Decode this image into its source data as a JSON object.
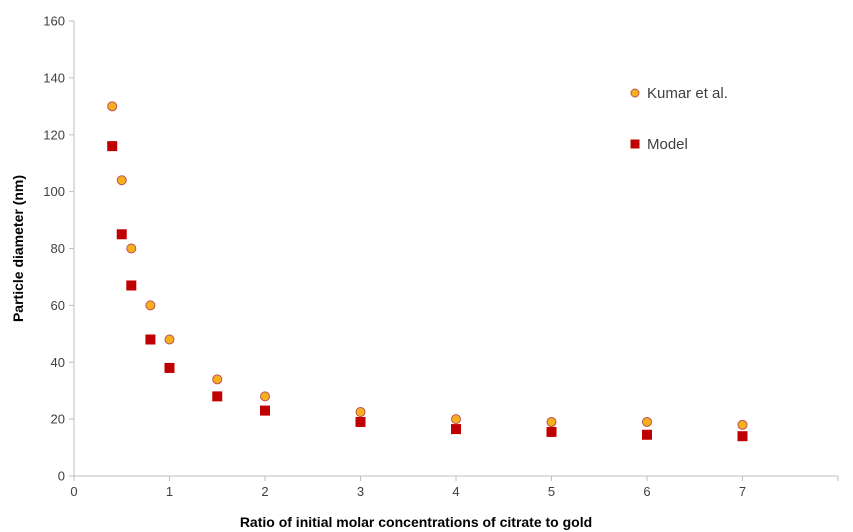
{
  "chart_data": {
    "type": "scatter",
    "xlabel": "Ratio of initial molar concentrations of citrate to gold",
    "ylabel": "Particle diameter (nm)",
    "xlim": [
      0,
      8
    ],
    "ylim": [
      0,
      160
    ],
    "xticks": [
      0,
      1,
      2,
      3,
      4,
      5,
      6,
      7
    ],
    "yticks": [
      0,
      20,
      40,
      60,
      80,
      100,
      120,
      140,
      160
    ],
    "grid": false,
    "legend_position": "top-right",
    "series": [
      {
        "name": "Kumar et al.",
        "marker": "circle",
        "color": "#F5B01E",
        "edge_color": "#C0504D",
        "points": [
          [
            0.4,
            130
          ],
          [
            0.5,
            104
          ],
          [
            0.6,
            80
          ],
          [
            0.8,
            60
          ],
          [
            1.0,
            48
          ],
          [
            1.5,
            34
          ],
          [
            2.0,
            28
          ],
          [
            3.0,
            22.5
          ],
          [
            4.0,
            20
          ],
          [
            5.0,
            19
          ],
          [
            6.0,
            19
          ],
          [
            7.0,
            18
          ]
        ]
      },
      {
        "name": "Model",
        "marker": "square",
        "color": "#C00000",
        "edge_color": "#C00000",
        "points": [
          [
            0.4,
            116
          ],
          [
            0.5,
            85
          ],
          [
            0.6,
            67
          ],
          [
            0.8,
            48
          ],
          [
            1.0,
            38
          ],
          [
            1.5,
            28
          ],
          [
            2.0,
            23
          ],
          [
            3.0,
            19
          ],
          [
            4.0,
            16.5
          ],
          [
            5.0,
            15.5
          ],
          [
            6.0,
            14.5
          ],
          [
            7.0,
            14
          ]
        ]
      }
    ]
  }
}
